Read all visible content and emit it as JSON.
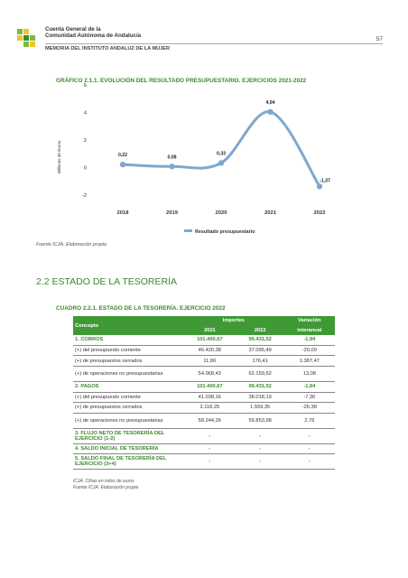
{
  "header": {
    "title_line1": "Cuenta General de la",
    "title_line2": "Comunidad Autónoma de Andalucía",
    "subtitle": "MEMORIA DEL INSTITUTO ANDALUZ DE LA MUJER",
    "page_number": "57"
  },
  "colors": {
    "accent_green": "#3a8a2a",
    "header_green": "#3f9a35",
    "line_blue": "#7fa8cf"
  },
  "chart_data": {
    "type": "line",
    "title": "GRÁFICO 2.1.1. EVOLUCIÓN DEL RESULTADO PRESUPUESTARIO. EJERCICIOS 2021-2022",
    "ylabel": "Millones de Euros",
    "xlabel": "",
    "categories": [
      "2018",
      "2019",
      "2020",
      "2021",
      "2022"
    ],
    "yticks": [
      "6",
      "4",
      "2",
      "0",
      "-2"
    ],
    "ylim": [
      -2,
      6
    ],
    "grid": false,
    "legend_position": "bottom",
    "series": [
      {
        "name": "Resultado presupuestario",
        "values": [
          0.22,
          0.08,
          0.33,
          4.04,
          -1.37
        ],
        "labels": [
          "0,22",
          "0,08",
          "0,33",
          "4,04",
          "-1,37"
        ]
      }
    ]
  },
  "chart_source": "Fuente ICJA. Elaboración propia",
  "section_title": "2.2 ESTADO DE LA TESORERÍA",
  "table_title": "CUADRO 2.2.1. ESTADO DE LA TESORERÍA. EJERCICIO 2022",
  "table": {
    "col_concepto": "Concepto",
    "col_importes": "Importes",
    "col_2021": "2021",
    "col_2022": "2022",
    "col_variacion_1": "Variación",
    "col_variacion_2": "interanual",
    "rows": [
      {
        "concepto": "1. COBROS",
        "v2021": "101.400,67",
        "v2022": "99.431,52",
        "var": "-1,94"
      },
      {
        "concepto": "(+) del presupuesto corriente",
        "v2021": "46.420,38",
        "v2022": "37.095,49",
        "var": "-20,09"
      },
      {
        "concepto": "(+) de presupuestos cerrados",
        "v2021": "11,86",
        "v2022": "176,41",
        "var": "1.387,47"
      },
      {
        "concepto": "(+) de operaciones no presupuestarias",
        "v2021": "54.968,43",
        "v2022": "62.159,62",
        "var": "13,08"
      },
      {
        "concepto": "2. PAGOS",
        "v2021": "101.400,67",
        "v2022": "99.431,52",
        "var": "-1,94"
      },
      {
        "concepto": "(+) del presupuesto corriente",
        "v2021": "41.038,16",
        "v2022": "38.018,19",
        "var": "-7,36"
      },
      {
        "concepto": "(+) de presupuestos cerrados",
        "v2021": "2.118,25",
        "v2022": "1.559,35",
        "var": "-26,38"
      },
      {
        "concepto": "(+) de operaciones no presupuestarias",
        "v2021": "58.244,26",
        "v2022": "59.853,98",
        "var": "2,76"
      },
      {
        "concepto": "3. FLUJO NETO DE TESORERÍA DEL EJERCICIO (1-2)",
        "v2021": "-",
        "v2022": "-",
        "var": "-"
      },
      {
        "concepto": "4. SALDO INICIAL DE TESORERÍA",
        "v2021": "-",
        "v2022": "-",
        "var": "-"
      },
      {
        "concepto": "5. SALDO FINAL DE TESORERÍA DEL EJERCICIO (3+4)",
        "v2021": "-",
        "v2022": "-",
        "var": "-"
      }
    ]
  },
  "table_note": "ICJA. Cifras en miles de euros",
  "table_source": "Fuente ICJA. Elaboración propia"
}
